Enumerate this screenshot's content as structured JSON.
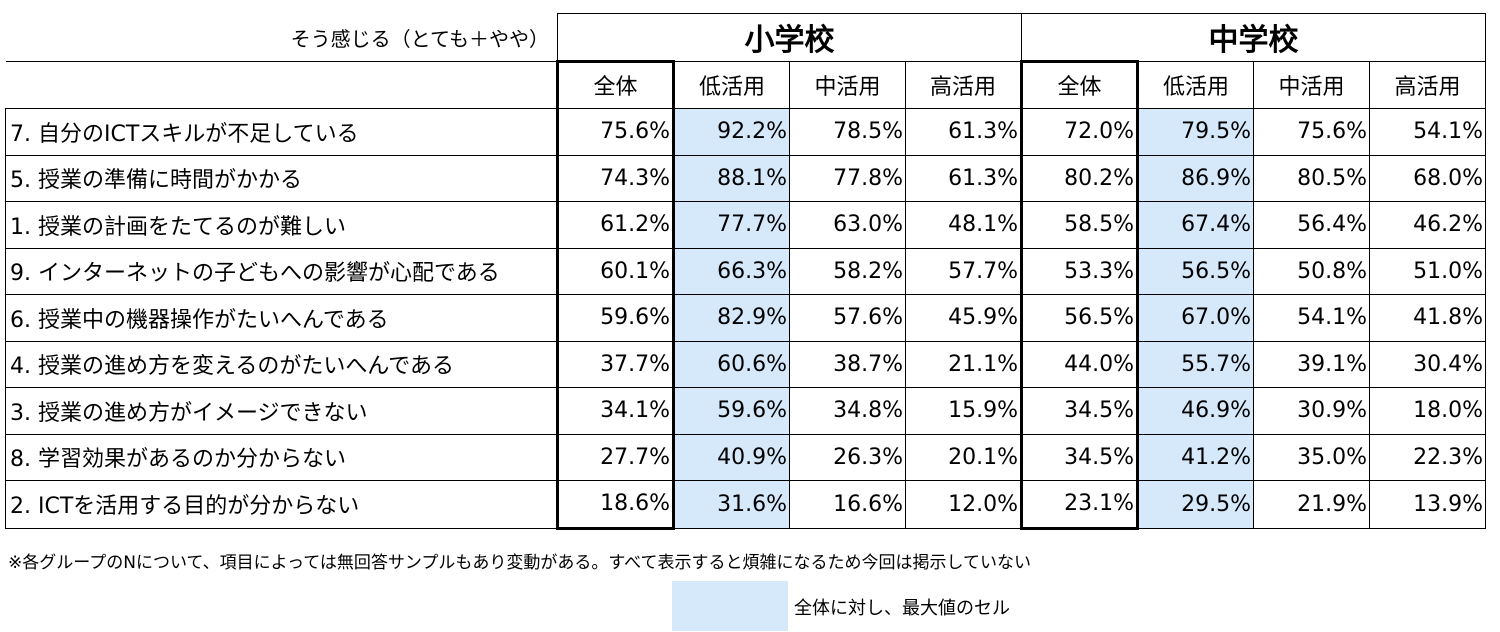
{
  "corner_label": "そう感じる（とても＋やや）",
  "schools": [
    {
      "name": "小学校",
      "columns": [
        "全体",
        "低活用",
        "中活用",
        "高活用"
      ]
    },
    {
      "name": "中学校",
      "columns": [
        "全体",
        "低活用",
        "中活用",
        "高活用"
      ]
    }
  ],
  "rows": [
    {
      "label": "7. 自分のICTスキルが不足している",
      "values": [
        "75.6%",
        "92.2%",
        "78.5%",
        "61.3%",
        "72.0%",
        "79.5%",
        "75.6%",
        "54.1%"
      ]
    },
    {
      "label": "5. 授業の準備に時間がかかる",
      "values": [
        "74.3%",
        "88.1%",
        "77.8%",
        "61.3%",
        "80.2%",
        "86.9%",
        "80.5%",
        "68.0%"
      ]
    },
    {
      "label": "1. 授業の計画をたてるのが難しい",
      "values": [
        "61.2%",
        "77.7%",
        "63.0%",
        "48.1%",
        "58.5%",
        "67.4%",
        "56.4%",
        "46.2%"
      ]
    },
    {
      "label": "9. インターネットの子どもへの影響が心配である",
      "values": [
        "60.1%",
        "66.3%",
        "58.2%",
        "57.7%",
        "53.3%",
        "56.5%",
        "50.8%",
        "51.0%"
      ]
    },
    {
      "label": "6. 授業中の機器操作がたいへんである",
      "values": [
        "59.6%",
        "82.9%",
        "57.6%",
        "45.9%",
        "56.5%",
        "67.0%",
        "54.1%",
        "41.8%"
      ]
    },
    {
      "label": "4. 授業の進め方を変えるのがたいへんである",
      "values": [
        "37.7%",
        "60.6%",
        "38.7%",
        "21.1%",
        "44.0%",
        "55.7%",
        "39.1%",
        "30.4%"
      ]
    },
    {
      "label": "3. 授業の進め方がイメージできない",
      "values": [
        "34.1%",
        "59.6%",
        "34.8%",
        "15.9%",
        "34.5%",
        "46.9%",
        "30.9%",
        "18.0%"
      ]
    },
    {
      "label": "8. 学習効果があるのか分からない",
      "values": [
        "27.7%",
        "40.9%",
        "26.3%",
        "20.1%",
        "34.5%",
        "41.2%",
        "35.0%",
        "22.3%"
      ]
    },
    {
      "label": "2. ICTを活用する目的が分からない",
      "values": [
        "18.6%",
        "31.6%",
        "16.6%",
        "12.0%",
        "23.1%",
        "29.5%",
        "21.9%",
        "13.9%"
      ]
    }
  ],
  "footnote": "※各グループのNについて、項目によっては無回答サンプルもあり変動がある。すべて表示すると煩雑になるため今回は掲示していない",
  "legend": {
    "label": "全体に対し、最大値のセル",
    "color": "#d6e9fb"
  }
}
